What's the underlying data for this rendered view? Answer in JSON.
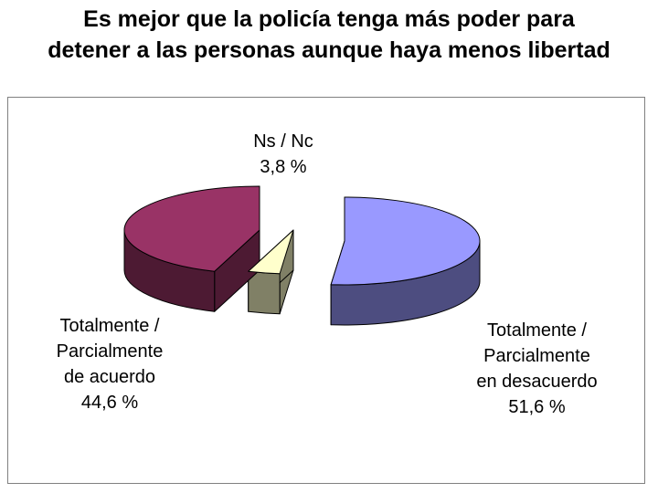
{
  "chart_data": {
    "type": "pie",
    "title_lines": [
      "Es mejor que la policía tenga más poder para",
      "detener a las personas aunque haya menos libertad"
    ],
    "slices": [
      {
        "label_lines": [
          "Totalmente /",
          "Parcialmente",
          "en desacuerdo",
          "51,6 %"
        ],
        "value": 51.6,
        "color_top": "#9999FF",
        "color_side": "#4D4D80"
      },
      {
        "label_lines": [
          "Ns / Nc",
          "3,8 %"
        ],
        "value": 3.8,
        "color_top": "#FFFFCC",
        "color_side": "#808066"
      },
      {
        "label_lines": [
          "Totalmente /",
          "Parcialmente",
          "de acuerdo",
          "44,6 %"
        ],
        "value": 44.6,
        "color_top": "#993366",
        "color_side": "#4D1A33"
      }
    ],
    "legend": "none"
  }
}
